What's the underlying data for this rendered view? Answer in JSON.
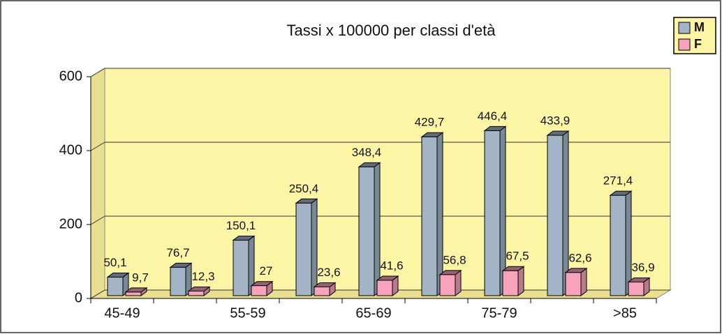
{
  "chart_data": {
    "type": "bar3d",
    "title": "Tassi x 100000 per classi d'età",
    "categories": [
      "45-49",
      null,
      "55-59",
      null,
      "65-69",
      null,
      "75-79",
      null,
      ">85"
    ],
    "series": [
      {
        "name": "M",
        "color": "#a3b4c6",
        "values": [
          50.1,
          76.7,
          150.1,
          250.4,
          348.4,
          429.7,
          446.4,
          433.9,
          271.4
        ],
        "value_labels": [
          "50,1",
          "76,7",
          "150,1",
          "250,4",
          "348,4",
          "429,7",
          "446,4",
          "433,9",
          "271,4"
        ]
      },
      {
        "name": "F",
        "color": "#f7a3bb",
        "values": [
          9.7,
          12.3,
          27,
          23.6,
          41.6,
          56.8,
          67.5,
          62.6,
          36.9
        ],
        "value_labels": [
          "9,7",
          "12,3",
          "27",
          "23,6",
          "41,6",
          "56,8",
          "67,5",
          "62,6",
          "36,9"
        ]
      }
    ],
    "ylim": [
      0,
      600
    ],
    "yticks": [
      0,
      200,
      400,
      600
    ],
    "grid": true,
    "legend": "top-right"
  }
}
